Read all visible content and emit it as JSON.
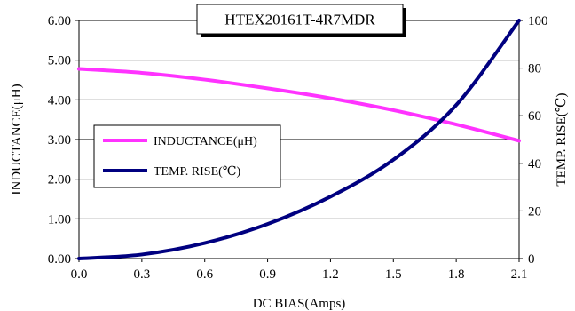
{
  "chart_data": {
    "type": "line",
    "title": "HTEX20161T-4R7MDR",
    "xlabel": "DC BIAS(Amps)",
    "ylabel": "INDUCTANCE(μH)",
    "y2label": "TEMP. RISE(℃)",
    "xlim": [
      0.0,
      2.1
    ],
    "ylim": [
      0.0,
      6.0
    ],
    "y2lim": [
      0,
      100
    ],
    "grid": "horizontal",
    "legend_position": "center-left",
    "xticks": [
      "0.0",
      "0.3",
      "0.6",
      "0.9",
      "1.2",
      "1.5",
      "1.8",
      "2.1"
    ],
    "yticks": [
      "0.00",
      "1.00",
      "2.00",
      "3.00",
      "4.00",
      "5.00",
      "6.00"
    ],
    "y2ticks": [
      "0",
      "20",
      "40",
      "60",
      "80",
      "100"
    ],
    "x": [
      0.0,
      0.3,
      0.6,
      0.9,
      1.2,
      1.5,
      1.8,
      2.1
    ],
    "series": [
      {
        "name": "INDUCTANCE(μH)",
        "axis": "left",
        "color": "#ff33ff",
        "values": [
          4.78,
          4.68,
          4.51,
          4.29,
          4.04,
          3.74,
          3.38,
          2.97
        ]
      },
      {
        "name": "TEMP. RISE(℃)",
        "axis": "right",
        "color": "#000080",
        "values": [
          0,
          1.7,
          6.5,
          14.5,
          26.0,
          41.5,
          64.5,
          100
        ]
      }
    ]
  }
}
